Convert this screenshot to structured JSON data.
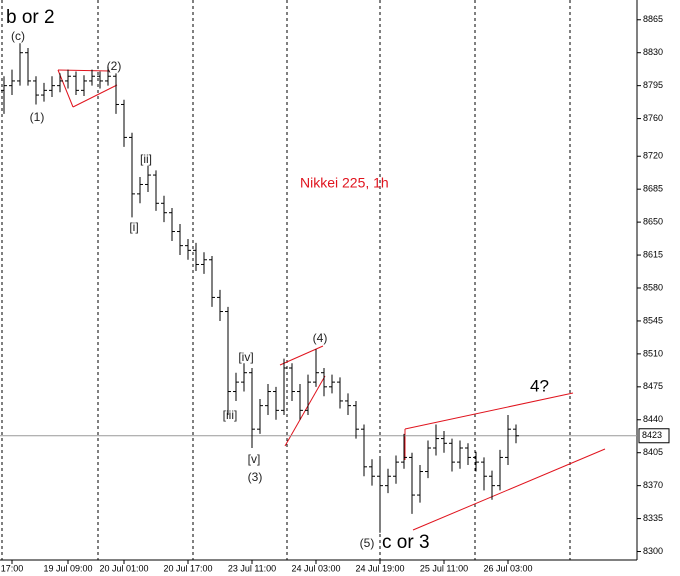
{
  "chart_data": {
    "type": "ohlc",
    "title": "Nikkei 225, 1h",
    "color": "#000000",
    "open": [
      8790,
      8795,
      8800,
      8830,
      8800,
      8785,
      8790,
      8795,
      8800,
      8805,
      8790,
      8800,
      8805,
      8800,
      8805,
      8775,
      8740,
      8680,
      8690,
      8700,
      8670,
      8660,
      8640,
      8625,
      8620,
      8605,
      8610,
      8570,
      8555,
      8470,
      8480,
      8490,
      8430,
      8455,
      8470,
      8450,
      8495,
      8470,
      8450,
      8480,
      8490,
      8475,
      8480,
      8460,
      8455,
      8430,
      8390,
      8380,
      8370,
      8380,
      8395,
      8400,
      8360,
      8385,
      8410,
      8420,
      8415,
      8395,
      8410,
      8400,
      8395,
      8380,
      8370,
      8400,
      8430
    ],
    "high": [
      8805,
      8812,
      8840,
      8835,
      8805,
      8798,
      8805,
      8808,
      8812,
      8810,
      8806,
      8812,
      8810,
      8815,
      8808,
      8780,
      8745,
      8698,
      8710,
      8705,
      8678,
      8665,
      8648,
      8632,
      8628,
      8618,
      8614,
      8578,
      8560,
      8490,
      8500,
      8495,
      8462,
      8478,
      8475,
      8505,
      8500,
      8478,
      8488,
      8515,
      8495,
      8488,
      8485,
      8468,
      8460,
      8435,
      8398,
      8400,
      8388,
      8402,
      8425,
      8405,
      8392,
      8418,
      8435,
      8428,
      8420,
      8418,
      8415,
      8406,
      8400,
      8386,
      8408,
      8445,
      8435
    ],
    "low": [
      8765,
      8785,
      8795,
      8795,
      8775,
      8778,
      8783,
      8788,
      8792,
      8785,
      8784,
      8795,
      8792,
      8795,
      8765,
      8730,
      8655,
      8670,
      8682,
      8662,
      8650,
      8630,
      8615,
      8610,
      8598,
      8595,
      8560,
      8545,
      8445,
      8460,
      8470,
      8410,
      8425,
      8445,
      8440,
      8445,
      8460,
      8440,
      8445,
      8475,
      8465,
      8468,
      8452,
      8445,
      8420,
      8380,
      8370,
      8320,
      8362,
      8372,
      8388,
      8340,
      8352,
      8378,
      8402,
      8405,
      8385,
      8388,
      8392,
      8385,
      8365,
      8355,
      8365,
      8392,
      8415
    ],
    "close": [
      8795,
      8800,
      8830,
      8800,
      8785,
      8790,
      8795,
      8800,
      8805,
      8790,
      8800,
      8805,
      8800,
      8805,
      8775,
      8740,
      8680,
      8690,
      8700,
      8670,
      8660,
      8640,
      8625,
      8620,
      8605,
      8610,
      8570,
      8555,
      8470,
      8480,
      8490,
      8430,
      8455,
      8470,
      8450,
      8495,
      8470,
      8450,
      8480,
      8490,
      8475,
      8480,
      8460,
      8455,
      8430,
      8390,
      8380,
      8370,
      8380,
      8395,
      8400,
      8360,
      8385,
      8410,
      8420,
      8415,
      8395,
      8410,
      8400,
      8395,
      8380,
      8370,
      8400,
      8430,
      8423
    ],
    "ylim": [
      8291,
      8886
    ],
    "yticks": [
      8300,
      8335,
      8370,
      8405,
      8440,
      8475,
      8510,
      8545,
      8580,
      8615,
      8650,
      8685,
      8720,
      8760,
      8795,
      8830,
      8865
    ],
    "xticks": [
      {
        "value": 1,
        "label": "17:00"
      },
      {
        "value": 8,
        "label": "19 Jul 09:00"
      },
      {
        "value": 15,
        "label": "20 Jul 01:00"
      },
      {
        "value": 23,
        "label": "20 Jul 17:00"
      },
      {
        "value": 31,
        "label": "23 Jul 11:00"
      },
      {
        "value": 39,
        "label": "24 Jul 03:00"
      },
      {
        "value": 47,
        "label": "24 Jul 19:00"
      },
      {
        "value": 55,
        "label": "25 Jul 11:00"
      },
      {
        "value": 63,
        "label": "26 Jul 03:00"
      }
    ],
    "last_price": 8423,
    "annotations": [
      "b or 2",
      "(c)",
      "(1)",
      "(2)",
      "[i]",
      "[ii]",
      "[iii]",
      "[iv]",
      "[v]",
      "(3)",
      "(4)",
      "(5)",
      "c or 3",
      "4?"
    ]
  }
}
